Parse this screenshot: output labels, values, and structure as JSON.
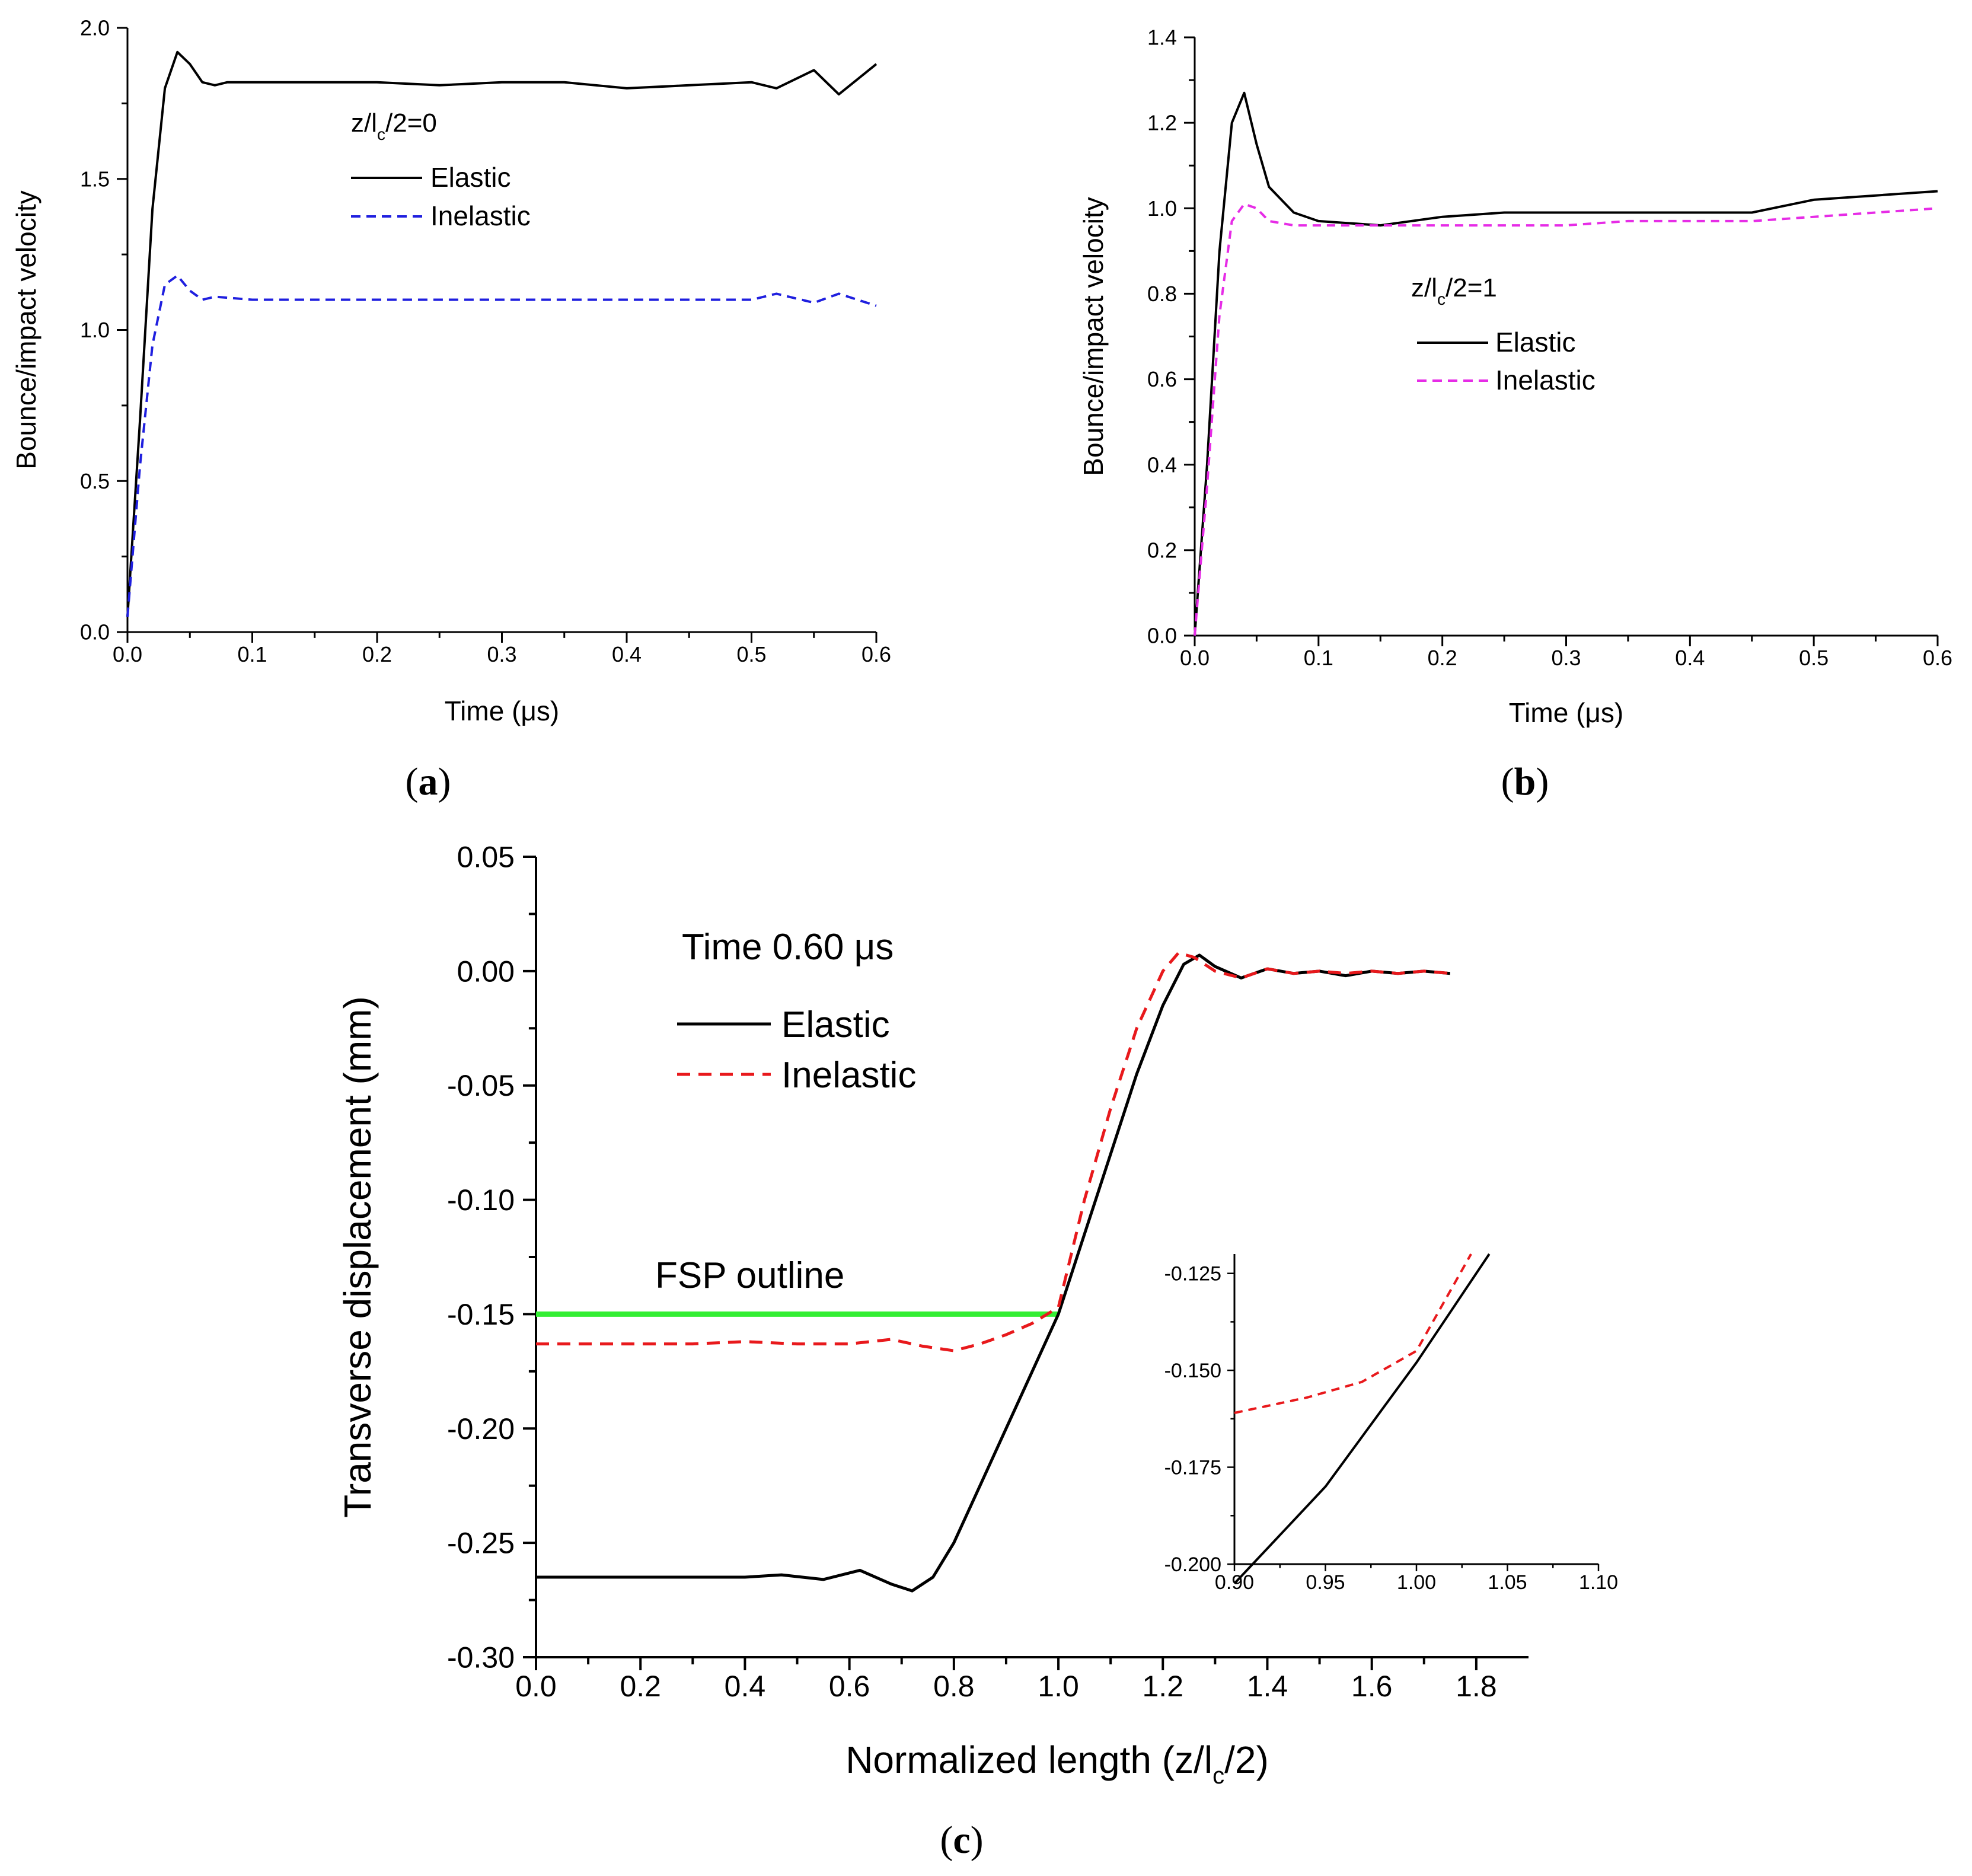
{
  "chart_data": [
    {
      "id": "a",
      "type": "line",
      "panel_label": "a",
      "xlabel": "Time (μs)",
      "ylabel": "Bounce/impact velocity",
      "xlim": [
        0,
        0.6
      ],
      "ylim": [
        0,
        2.0
      ],
      "xticks": [
        "0.0",
        "0.1",
        "0.2",
        "0.3",
        "0.4",
        "0.5",
        "0.6"
      ],
      "yticks": [
        "0.0",
        "0.5",
        "1.0",
        "1.5",
        "2.0"
      ],
      "legend_title": "z/lc/2=0",
      "legend_title_parts": {
        "pre": "z/l",
        "sub": "c",
        "post": "/2=0"
      },
      "legend_position": "upper-center",
      "series": [
        {
          "name": "Elastic",
          "color": "#000000",
          "dash": "solid",
          "x": [
            0,
            0.01,
            0.02,
            0.03,
            0.04,
            0.05,
            0.06,
            0.07,
            0.08,
            0.1,
            0.15,
            0.2,
            0.25,
            0.3,
            0.35,
            0.4,
            0.45,
            0.5,
            0.52,
            0.55,
            0.57,
            0.6
          ],
          "y": [
            0.05,
            0.7,
            1.4,
            1.8,
            1.92,
            1.88,
            1.82,
            1.81,
            1.82,
            1.82,
            1.82,
            1.82,
            1.81,
            1.82,
            1.82,
            1.8,
            1.81,
            1.82,
            1.8,
            1.86,
            1.78,
            1.88
          ]
        },
        {
          "name": "Inelastic",
          "color": "#1f1fdf",
          "dash": "dashed",
          "x": [
            0,
            0.01,
            0.02,
            0.03,
            0.04,
            0.05,
            0.06,
            0.07,
            0.1,
            0.15,
            0.2,
            0.25,
            0.3,
            0.35,
            0.4,
            0.45,
            0.5,
            0.52,
            0.55,
            0.57,
            0.6
          ],
          "y": [
            0.05,
            0.55,
            0.95,
            1.15,
            1.18,
            1.13,
            1.1,
            1.11,
            1.1,
            1.1,
            1.1,
            1.1,
            1.1,
            1.1,
            1.1,
            1.1,
            1.1,
            1.12,
            1.09,
            1.12,
            1.08
          ]
        }
      ]
    },
    {
      "id": "b",
      "type": "line",
      "panel_label": "b",
      "xlabel": "Time (μs)",
      "ylabel": "Bounce/impact velocity",
      "xlim": [
        0,
        0.6
      ],
      "ylim": [
        0,
        1.4
      ],
      "xticks": [
        "0.0",
        "0.1",
        "0.2",
        "0.3",
        "0.4",
        "0.5",
        "0.6"
      ],
      "yticks": [
        "0.0",
        "0.2",
        "0.4",
        "0.6",
        "0.8",
        "1.0",
        "1.2",
        "1.4"
      ],
      "legend_title": "z/lc/2=1",
      "legend_title_parts": {
        "pre": "z/l",
        "sub": "c",
        "post": "/2=1"
      },
      "legend_position": "center",
      "series": [
        {
          "name": "Elastic",
          "color": "#000000",
          "dash": "solid",
          "x": [
            0,
            0.01,
            0.02,
            0.03,
            0.04,
            0.05,
            0.06,
            0.08,
            0.1,
            0.15,
            0.2,
            0.25,
            0.3,
            0.35,
            0.4,
            0.45,
            0.5,
            0.55,
            0.6
          ],
          "y": [
            0.0,
            0.4,
            0.9,
            1.2,
            1.27,
            1.15,
            1.05,
            0.99,
            0.97,
            0.96,
            0.98,
            0.99,
            0.99,
            0.99,
            0.99,
            0.99,
            1.02,
            1.03,
            1.04
          ]
        },
        {
          "name": "Inelastic",
          "color": "#e62ce6",
          "dash": "dashed",
          "x": [
            0,
            0.01,
            0.02,
            0.03,
            0.04,
            0.05,
            0.06,
            0.08,
            0.1,
            0.15,
            0.2,
            0.25,
            0.3,
            0.35,
            0.4,
            0.45,
            0.5,
            0.55,
            0.6
          ],
          "y": [
            0.0,
            0.35,
            0.75,
            0.97,
            1.01,
            1.0,
            0.97,
            0.96,
            0.96,
            0.96,
            0.96,
            0.96,
            0.96,
            0.97,
            0.97,
            0.97,
            0.98,
            0.99,
            1.0
          ]
        }
      ]
    },
    {
      "id": "c",
      "type": "line",
      "panel_label": "c",
      "xlabel": "Normalized length (z/lc/2)",
      "xlabel_parts": {
        "pre": "Normalized length (z/l",
        "sub": "c",
        "post": "/2)"
      },
      "ylabel": "Transverse displacement (mm)",
      "xlim": [
        0,
        1.9
      ],
      "ylim": [
        -0.3,
        0.05
      ],
      "xticks": [
        "0.0",
        "0.2",
        "0.4",
        "0.6",
        "0.8",
        "1.0",
        "1.2",
        "1.4",
        "1.6",
        "1.8"
      ],
      "yticks": [
        "-0.30",
        "-0.25",
        "-0.20",
        "-0.15",
        "-0.10",
        "-0.05",
        "0.00",
        "0.05"
      ],
      "annotation_time": "Time 0.60 μs",
      "annotation_fsp": "FSP outline",
      "legend_position": "upper-left",
      "fsp_line": {
        "x": [
          0,
          1.0
        ],
        "y": -0.15,
        "color": "#33ee33"
      },
      "series": [
        {
          "name": "Elastic",
          "color": "#000000",
          "dash": "solid",
          "x": [
            0,
            0.1,
            0.2,
            0.3,
            0.4,
            0.47,
            0.55,
            0.62,
            0.68,
            0.72,
            0.76,
            0.8,
            0.85,
            0.9,
            0.95,
            1.0,
            1.05,
            1.1,
            1.15,
            1.2,
            1.24,
            1.27,
            1.3,
            1.35,
            1.4,
            1.45,
            1.5,
            1.55,
            1.6,
            1.65,
            1.7,
            1.75
          ],
          "y": [
            -0.265,
            -0.265,
            -0.265,
            -0.265,
            -0.265,
            -0.264,
            -0.266,
            -0.262,
            -0.268,
            -0.271,
            -0.265,
            -0.25,
            -0.225,
            -0.2,
            -0.175,
            -0.15,
            -0.115,
            -0.08,
            -0.045,
            -0.015,
            0.003,
            0.007,
            0.002,
            -0.003,
            0.001,
            -0.001,
            0.0,
            -0.002,
            0.0,
            -0.001,
            0.0,
            -0.001
          ]
        },
        {
          "name": "Inelastic",
          "color": "#e8191c",
          "dash": "dashed",
          "x": [
            0,
            0.1,
            0.2,
            0.3,
            0.4,
            0.5,
            0.6,
            0.68,
            0.74,
            0.8,
            0.85,
            0.9,
            0.95,
            1.0,
            1.05,
            1.1,
            1.15,
            1.2,
            1.23,
            1.26,
            1.3,
            1.35,
            1.4,
            1.45,
            1.5,
            1.55,
            1.6,
            1.65,
            1.7,
            1.75
          ],
          "y": [
            -0.163,
            -0.163,
            -0.163,
            -0.163,
            -0.162,
            -0.163,
            -0.163,
            -0.161,
            -0.164,
            -0.166,
            -0.163,
            -0.159,
            -0.154,
            -0.147,
            -0.1,
            -0.06,
            -0.025,
            0.0,
            0.008,
            0.006,
            0.0,
            -0.003,
            0.001,
            -0.001,
            0.0,
            -0.001,
            0.0,
            -0.001,
            0.0,
            -0.001
          ]
        }
      ],
      "inset": {
        "xlim": [
          0.9,
          1.1
        ],
        "ylim": [
          -0.2,
          -0.12
        ],
        "xticks": [
          "0.90",
          "0.95",
          "1.00",
          "1.05",
          "1.10"
        ],
        "yticks": [
          "-0.200",
          "-0.175",
          "-0.150",
          "-0.125"
        ],
        "series": [
          {
            "name": "Elastic",
            "color": "#000000",
            "dash": "solid",
            "x": [
              0.9,
              0.95,
              1.0,
              1.04
            ],
            "y": [
              -0.205,
              -0.18,
              -0.148,
              -0.12
            ]
          },
          {
            "name": "Inelastic",
            "color": "#e8191c",
            "dash": "dashed",
            "x": [
              0.9,
              0.94,
              0.97,
              1.0,
              1.03
            ],
            "y": [
              -0.161,
              -0.157,
              -0.153,
              -0.145,
              -0.12
            ]
          }
        ]
      }
    }
  ]
}
